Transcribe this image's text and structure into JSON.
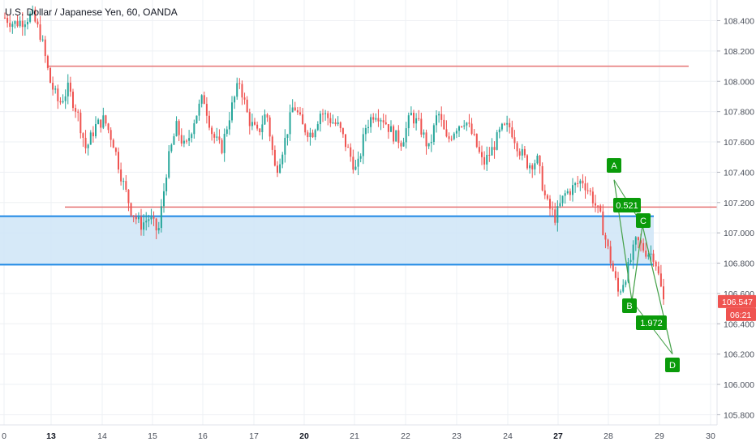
{
  "header": {
    "title": "U.S. Dollar / Japanese Yen, 60, OANDA"
  },
  "price_axis": {
    "labels": [
      "108.400",
      "108.200",
      "108.000",
      "107.800",
      "107.600",
      "107.400",
      "107.200",
      "107.000",
      "106.800",
      "106.600",
      "106.400",
      "106.200",
      "106.000",
      "105.800"
    ]
  },
  "time_axis": {
    "labels": [
      {
        "text": "0",
        "bold": false
      },
      {
        "text": "13",
        "bold": true
      },
      {
        "text": "14",
        "bold": false
      },
      {
        "text": "15",
        "bold": false
      },
      {
        "text": "16",
        "bold": false
      },
      {
        "text": "17",
        "bold": false
      },
      {
        "text": "20",
        "bold": true
      },
      {
        "text": "21",
        "bold": false
      },
      {
        "text": "22",
        "bold": false
      },
      {
        "text": "23",
        "bold": false
      },
      {
        "text": "24",
        "bold": false
      },
      {
        "text": "27",
        "bold": true
      },
      {
        "text": "28",
        "bold": false
      },
      {
        "text": "29",
        "bold": false
      },
      {
        "text": "30",
        "bold": false
      }
    ]
  },
  "price_tags": {
    "last_price": "106.547",
    "countdown": "06:21"
  },
  "pattern": {
    "points": [
      "A",
      "B",
      "C",
      "D"
    ],
    "ratios": [
      "0.521",
      "1.972"
    ]
  },
  "colors": {
    "up": "#26a69a",
    "down": "#ef5350",
    "level_line": "#e57373",
    "zone_fill": "#cfe5f7",
    "zone_border": "#1e88e5",
    "pattern": "#2e7d32",
    "pattern_label": "#0a9b0a",
    "price_tag": "#ef5350"
  },
  "chart_data": {
    "type": "candlestick",
    "symbol": "USDJPY",
    "interval": "60",
    "source": "OANDA",
    "ylim": [
      105.65,
      108.55
    ],
    "x_axis_ticks": [
      "0",
      "13",
      "14",
      "15",
      "16",
      "17",
      "20",
      "21",
      "22",
      "23",
      "24",
      "27",
      "28",
      "29",
      "30"
    ],
    "series_path": [
      [
        0,
        108.42
      ],
      [
        0.5,
        108.38
      ],
      [
        1,
        108.4
      ],
      [
        1.5,
        108.44
      ],
      [
        2,
        108.3
      ],
      [
        2.5,
        108.0
      ],
      [
        3,
        107.85
      ],
      [
        3.5,
        107.95
      ],
      [
        4,
        107.8
      ],
      [
        4.5,
        107.55
      ],
      [
        5,
        107.7
      ],
      [
        5.5,
        107.75
      ],
      [
        6,
        107.6
      ],
      [
        6.5,
        107.35
      ],
      [
        7,
        107.15
      ],
      [
        7.5,
        107.05
      ],
      [
        8,
        107.1
      ],
      [
        8.5,
        107.0
      ],
      [
        9,
        107.45
      ],
      [
        9.5,
        107.7
      ],
      [
        10,
        107.55
      ],
      [
        10.5,
        107.75
      ],
      [
        11,
        107.9
      ],
      [
        11.5,
        107.65
      ],
      [
        12,
        107.55
      ],
      [
        12.5,
        107.8
      ],
      [
        13,
        108.0
      ],
      [
        13.5,
        107.75
      ],
      [
        14,
        107.65
      ],
      [
        14.5,
        107.8
      ],
      [
        15,
        107.4
      ],
      [
        15.5,
        107.6
      ],
      [
        16,
        107.85
      ],
      [
        16.5,
        107.7
      ],
      [
        17,
        107.65
      ],
      [
        17.5,
        107.8
      ],
      [
        18,
        107.75
      ],
      [
        18.5,
        107.7
      ],
      [
        19,
        107.55
      ],
      [
        19.5,
        107.4
      ],
      [
        20,
        107.7
      ],
      [
        20.5,
        107.8
      ],
      [
        21,
        107.75
      ],
      [
        21.5,
        107.65
      ],
      [
        22,
        107.6
      ],
      [
        22.5,
        107.78
      ],
      [
        23,
        107.7
      ],
      [
        23.5,
        107.55
      ],
      [
        24,
        107.8
      ],
      [
        24.5,
        107.6
      ],
      [
        25,
        107.7
      ],
      [
        25.5,
        107.75
      ],
      [
        26,
        107.62
      ],
      [
        26.5,
        107.45
      ],
      [
        27,
        107.55
      ],
      [
        27.5,
        107.68
      ],
      [
        28,
        107.7
      ],
      [
        28.5,
        107.55
      ],
      [
        29,
        107.45
      ],
      [
        29.5,
        107.48
      ],
      [
        30,
        107.2
      ],
      [
        30.5,
        107.1
      ],
      [
        31,
        107.25
      ],
      [
        31.5,
        107.3
      ],
      [
        32,
        107.35
      ],
      [
        32.5,
        107.25
      ],
      [
        33,
        107.1
      ],
      [
        33.5,
        106.85
      ],
      [
        34,
        106.6
      ],
      [
        34.5,
        106.75
      ],
      [
        35,
        106.95
      ],
      [
        35.5,
        106.88
      ],
      [
        36,
        106.85
      ],
      [
        36.5,
        106.55
      ]
    ],
    "horizontal_levels": [
      108.1,
      107.17
    ],
    "zone": {
      "top": 107.11,
      "bottom": 106.79
    },
    "harmonic_pattern": {
      "A": 107.35,
      "B": 106.55,
      "C": 107.05,
      "D": 106.2,
      "ratio_BC": 0.521,
      "ratio_CD": 1.972
    },
    "last_price": 106.547
  }
}
